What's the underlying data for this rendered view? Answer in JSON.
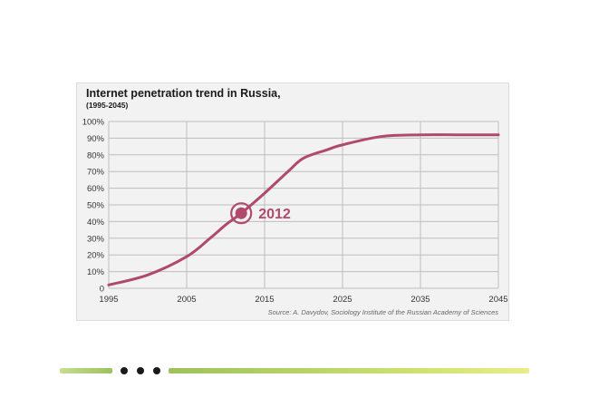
{
  "chart_data": {
    "type": "line",
    "title": "Internet penetration trend in Russia,",
    "subtitle": "(1995-2045)",
    "source": "Source: A. Davydov, Sociology Institute of the Russian Academy of Sciences",
    "x": [
      1995,
      2000,
      2005,
      2008,
      2010,
      2012,
      2015,
      2018,
      2020,
      2023,
      2025,
      2030,
      2035,
      2040,
      2045
    ],
    "series": [
      {
        "values": [
          2,
          8,
          19,
          30,
          38,
          45,
          57,
          70,
          78,
          83,
          86,
          91,
          92,
          92,
          92
        ],
        "color": "#b04a6c"
      }
    ],
    "xlim": [
      1995,
      2045
    ],
    "ylim": [
      0,
      100
    ],
    "x_ticks": [
      1995,
      2005,
      2015,
      2025,
      2035,
      2045
    ],
    "x_tick_labels": [
      "1995",
      "2005",
      "2015",
      "2025",
      "2035",
      "2045"
    ],
    "y_ticks": [
      0,
      10,
      20,
      30,
      40,
      50,
      60,
      70,
      80,
      90,
      100
    ],
    "y_tick_labels": [
      "0",
      "10%",
      "20%",
      "30%",
      "40%",
      "50%",
      "60%",
      "70%",
      "80%",
      "90%",
      "100%"
    ],
    "grid": true,
    "highlight": {
      "x": 2012,
      "y": 45,
      "label": "2012",
      "color": "#b04a6c"
    }
  },
  "colors": {
    "accent": "#b04a6c",
    "grid": "#bdbdbd",
    "panel": "#f3f2f2"
  }
}
